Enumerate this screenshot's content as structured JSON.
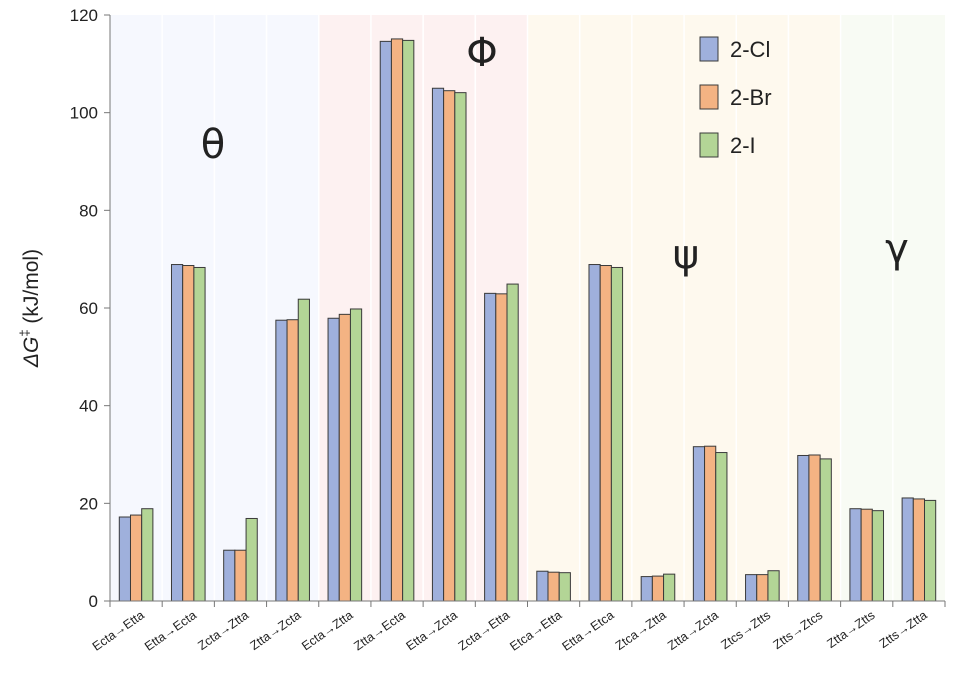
{
  "chart_data": {
    "type": "bar",
    "ylabel_prefix": "ΔG",
    "ylabel_sup": "‡",
    "ylabel_suffix": " (kJ/mol)",
    "ylim": [
      0,
      120
    ],
    "yticks": [
      0,
      20,
      40,
      60,
      80,
      100,
      120
    ],
    "categories": [
      "Ecta→Etta",
      "Etta→Ecta",
      "Zcta→Ztta",
      "Ztta→Zcta",
      "Ecta→Ztta",
      "Ztta→Ecta",
      "Etta→Zcta",
      "Zcta→Etta",
      "Etca→Etta",
      "Etta→Etca",
      "Ztca→Ztta",
      "Ztta→Zcta",
      "Ztcs→Ztts",
      "Ztts→Ztcs",
      "Ztta→Ztts",
      "Ztts→Ztta"
    ],
    "series": [
      {
        "name": "2-Cl",
        "color": "#9fb0dc",
        "values": [
          17.2,
          68.9,
          10.4,
          57.5,
          57.9,
          114.6,
          105.0,
          63.0,
          6.1,
          68.9,
          5.0,
          31.6,
          5.4,
          29.8,
          18.9,
          21.1
        ]
      },
      {
        "name": "2-Br",
        "color": "#f4b383",
        "values": [
          17.6,
          68.7,
          10.4,
          57.6,
          58.7,
          115.1,
          104.5,
          62.9,
          5.9,
          68.7,
          5.1,
          31.7,
          5.4,
          29.9,
          18.8,
          20.9
        ]
      },
      {
        "name": "2-I",
        "color": "#b3d596",
        "values": [
          18.9,
          68.3,
          16.9,
          61.8,
          59.8,
          114.8,
          104.1,
          64.9,
          5.8,
          68.3,
          5.5,
          30.4,
          6.2,
          29.1,
          18.5,
          20.6
        ]
      }
    ],
    "groups": [
      {
        "label": "θ",
        "start": 0,
        "end": 3,
        "color": "#f6f8fe"
      },
      {
        "label": "Φ",
        "start": 4,
        "end": 7,
        "color": "#fdf1f1"
      },
      {
        "label": "ψ",
        "start": 8,
        "end": 13,
        "color": "#fef9ee"
      },
      {
        "label": "γ",
        "start": 14,
        "end": 15,
        "color": "#f8fbf4"
      }
    ],
    "legend_position": "top-right",
    "grid": false
  }
}
